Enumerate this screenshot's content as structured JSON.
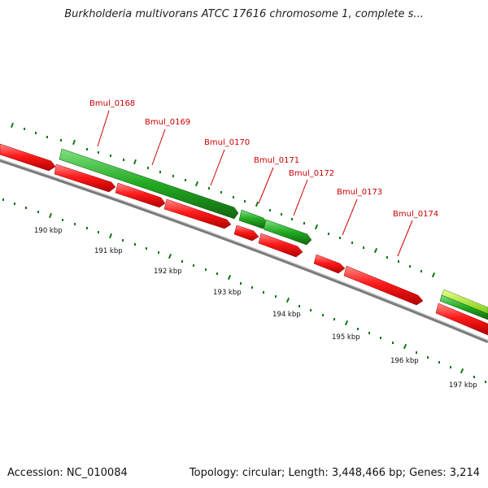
{
  "title": "Burkholderia multivorans ATCC 17616 chromosome 1, complete s...",
  "footer": {
    "accession": "Accession: NC_010084",
    "summary": "Topology: circular; Length: 3,448,466 bp; Genes: 3,214"
  },
  "colors": {
    "reverse_gene": "#ff1a1a",
    "forward_gene": "#22aa22",
    "forward_gene_light": "#99ee22",
    "backbone": "#808080",
    "tick": "#117711",
    "label": "#cc0000"
  },
  "gene_labels": [
    "Bmul_0168",
    "Bmul_0169",
    "Bmul_0170",
    "Bmul_0171",
    "Bmul_0172",
    "Bmul_0173",
    "Bmul_0174"
  ],
  "scale_labels": [
    "190 kbp",
    "191 kbp",
    "192 kbp",
    "193 kbp",
    "194 kbp",
    "195 kbp",
    "196 kbp",
    "197 kbp"
  ]
}
